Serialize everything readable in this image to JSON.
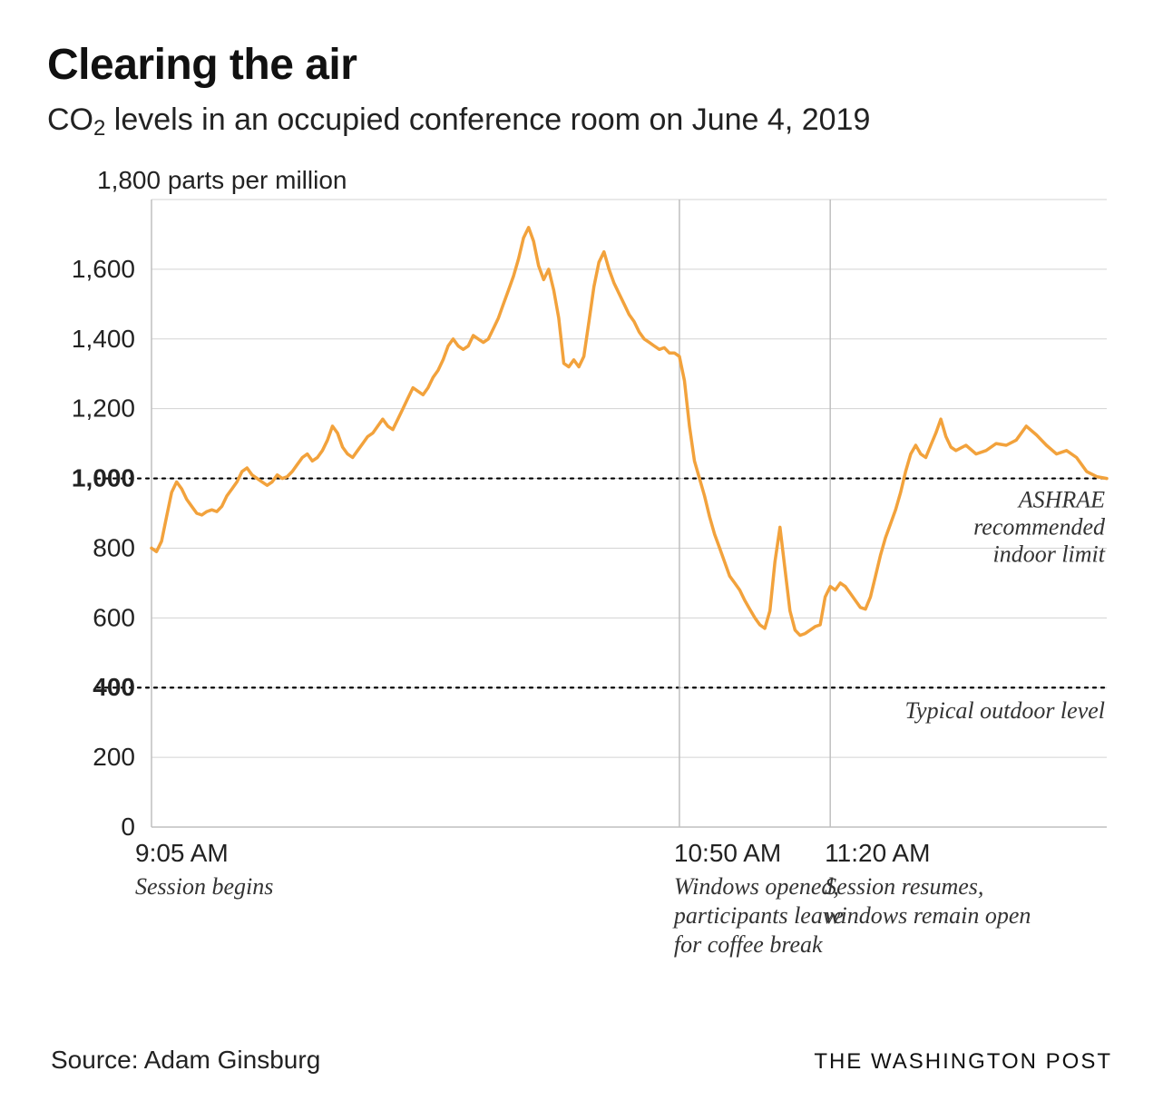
{
  "title": "Clearing the air",
  "subtitle_pre": "CO",
  "subtitle_sub": "2",
  "subtitle_post": " levels in an occupied conference room on June 4, 2019",
  "source": "Source: Adam Ginsburg",
  "credit": "THE WASHINGTON POST",
  "chart": {
    "type": "line",
    "unit_label": "1,800 parts per million",
    "line_color": "#f2a23c",
    "line_width": 3.5,
    "background_color": "#ffffff",
    "grid_color": "#d3d3d3",
    "axis_color": "#bfbfbf",
    "xlim": [
      0,
      160
    ],
    "ylim": [
      0,
      1800
    ],
    "y_ticks": [
      {
        "v": 0,
        "label": "0",
        "bold": false
      },
      {
        "v": 200,
        "label": "200",
        "bold": false
      },
      {
        "v": 400,
        "label": "400",
        "bold": true
      },
      {
        "v": 600,
        "label": "600",
        "bold": false
      },
      {
        "v": 800,
        "label": "800",
        "bold": false
      },
      {
        "v": 1000,
        "label": "1,000",
        "bold": true
      },
      {
        "v": 1200,
        "label": "1,200",
        "bold": false
      },
      {
        "v": 1400,
        "label": "1,400",
        "bold": false
      },
      {
        "v": 1600,
        "label": "1,600",
        "bold": false
      }
    ],
    "x_events": [
      {
        "t": 0,
        "time": "9:05 AM",
        "desc": "Session begins",
        "vline": false
      },
      {
        "t": 105,
        "time": "10:50 AM",
        "desc": "Windows opened, participants leave for coffee break",
        "vline": true
      },
      {
        "t": 135,
        "time": "11:20 AM",
        "desc": "Session resumes, windows remain open",
        "vline": true
      }
    ],
    "reference_lines": [
      {
        "v": 1000,
        "label": "ASHRAE recommended indoor limit"
      },
      {
        "v": 400,
        "label": "Typical outdoor level"
      }
    ],
    "series": [
      [
        0,
        800
      ],
      [
        1,
        790
      ],
      [
        2,
        820
      ],
      [
        3,
        890
      ],
      [
        4,
        960
      ],
      [
        5,
        990
      ],
      [
        6,
        970
      ],
      [
        7,
        940
      ],
      [
        8,
        920
      ],
      [
        9,
        900
      ],
      [
        10,
        895
      ],
      [
        11,
        905
      ],
      [
        12,
        910
      ],
      [
        13,
        905
      ],
      [
        14,
        920
      ],
      [
        15,
        950
      ],
      [
        16,
        970
      ],
      [
        17,
        990
      ],
      [
        18,
        1020
      ],
      [
        19,
        1030
      ],
      [
        20,
        1010
      ],
      [
        21,
        1000
      ],
      [
        22,
        990
      ],
      [
        23,
        980
      ],
      [
        24,
        990
      ],
      [
        25,
        1010
      ],
      [
        26,
        1000
      ],
      [
        27,
        1005
      ],
      [
        28,
        1020
      ],
      [
        29,
        1040
      ],
      [
        30,
        1060
      ],
      [
        31,
        1070
      ],
      [
        32,
        1050
      ],
      [
        33,
        1060
      ],
      [
        34,
        1080
      ],
      [
        35,
        1110
      ],
      [
        36,
        1150
      ],
      [
        37,
        1130
      ],
      [
        38,
        1090
      ],
      [
        39,
        1070
      ],
      [
        40,
        1060
      ],
      [
        41,
        1080
      ],
      [
        42,
        1100
      ],
      [
        43,
        1120
      ],
      [
        44,
        1130
      ],
      [
        45,
        1150
      ],
      [
        46,
        1170
      ],
      [
        47,
        1150
      ],
      [
        48,
        1140
      ],
      [
        49,
        1170
      ],
      [
        50,
        1200
      ],
      [
        51,
        1230
      ],
      [
        52,
        1260
      ],
      [
        53,
        1250
      ],
      [
        54,
        1240
      ],
      [
        55,
        1260
      ],
      [
        56,
        1290
      ],
      [
        57,
        1310
      ],
      [
        58,
        1340
      ],
      [
        59,
        1380
      ],
      [
        60,
        1400
      ],
      [
        61,
        1380
      ],
      [
        62,
        1370
      ],
      [
        63,
        1380
      ],
      [
        64,
        1410
      ],
      [
        65,
        1400
      ],
      [
        66,
        1390
      ],
      [
        67,
        1400
      ],
      [
        68,
        1430
      ],
      [
        69,
        1460
      ],
      [
        70,
        1500
      ],
      [
        71,
        1540
      ],
      [
        72,
        1580
      ],
      [
        73,
        1630
      ],
      [
        74,
        1690
      ],
      [
        75,
        1720
      ],
      [
        76,
        1680
      ],
      [
        77,
        1610
      ],
      [
        78,
        1570
      ],
      [
        79,
        1600
      ],
      [
        80,
        1540
      ],
      [
        81,
        1460
      ],
      [
        82,
        1330
      ],
      [
        83,
        1320
      ],
      [
        84,
        1340
      ],
      [
        85,
        1320
      ],
      [
        86,
        1350
      ],
      [
        87,
        1450
      ],
      [
        88,
        1550
      ],
      [
        89,
        1620
      ],
      [
        90,
        1650
      ],
      [
        91,
        1600
      ],
      [
        92,
        1560
      ],
      [
        93,
        1530
      ],
      [
        94,
        1500
      ],
      [
        95,
        1470
      ],
      [
        96,
        1450
      ],
      [
        97,
        1420
      ],
      [
        98,
        1400
      ],
      [
        99,
        1390
      ],
      [
        100,
        1380
      ],
      [
        101,
        1370
      ],
      [
        102,
        1375
      ],
      [
        103,
        1360
      ],
      [
        104,
        1360
      ],
      [
        105,
        1350
      ],
      [
        106,
        1280
      ],
      [
        107,
        1150
      ],
      [
        108,
        1050
      ],
      [
        109,
        1000
      ],
      [
        110,
        950
      ],
      [
        111,
        890
      ],
      [
        112,
        840
      ],
      [
        113,
        800
      ],
      [
        114,
        760
      ],
      [
        115,
        720
      ],
      [
        116,
        700
      ],
      [
        117,
        680
      ],
      [
        118,
        650
      ],
      [
        119,
        625
      ],
      [
        120,
        600
      ],
      [
        121,
        580
      ],
      [
        122,
        570
      ],
      [
        123,
        620
      ],
      [
        124,
        760
      ],
      [
        125,
        860
      ],
      [
        126,
        740
      ],
      [
        127,
        620
      ],
      [
        128,
        565
      ],
      [
        129,
        550
      ],
      [
        130,
        555
      ],
      [
        131,
        565
      ],
      [
        132,
        575
      ],
      [
        133,
        580
      ],
      [
        134,
        660
      ],
      [
        135,
        690
      ],
      [
        136,
        680
      ],
      [
        137,
        700
      ],
      [
        138,
        690
      ],
      [
        139,
        670
      ],
      [
        140,
        650
      ],
      [
        141,
        630
      ],
      [
        142,
        625
      ],
      [
        143,
        660
      ],
      [
        144,
        720
      ],
      [
        145,
        780
      ],
      [
        146,
        830
      ],
      [
        147,
        870
      ],
      [
        148,
        910
      ],
      [
        149,
        960
      ],
      [
        150,
        1020
      ],
      [
        151,
        1070
      ],
      [
        152,
        1095
      ],
      [
        153,
        1070
      ],
      [
        154,
        1060
      ],
      [
        155,
        1095
      ],
      [
        156,
        1130
      ],
      [
        157,
        1170
      ],
      [
        158,
        1120
      ],
      [
        159,
        1090
      ],
      [
        160,
        1080
      ]
    ],
    "series_tail": [
      [
        160,
        1080
      ],
      [
        162,
        1095
      ],
      [
        164,
        1070
      ],
      [
        166,
        1080
      ],
      [
        168,
        1100
      ],
      [
        170,
        1095
      ],
      [
        172,
        1110
      ],
      [
        174,
        1150
      ],
      [
        176,
        1125
      ],
      [
        178,
        1095
      ],
      [
        180,
        1070
      ],
      [
        182,
        1080
      ],
      [
        184,
        1060
      ],
      [
        186,
        1020
      ],
      [
        188,
        1005
      ],
      [
        190,
        1000
      ]
    ]
  }
}
